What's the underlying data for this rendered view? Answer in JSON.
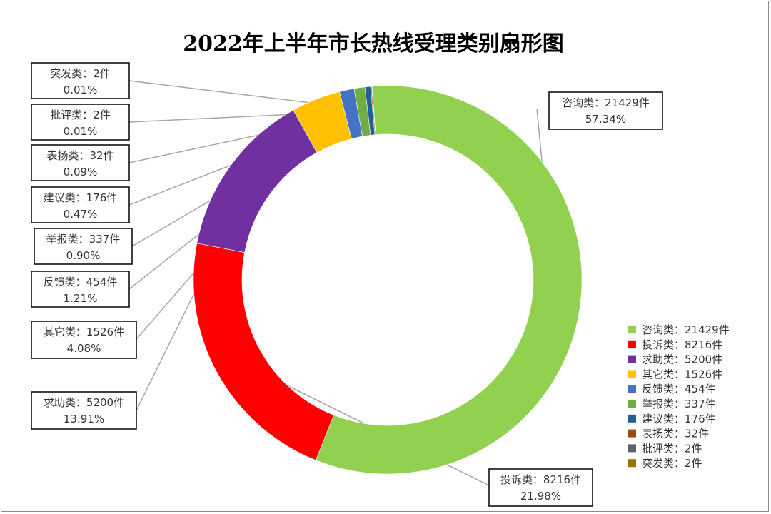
{
  "chart_data": {
    "type": "pie",
    "style": "donut",
    "title": "2022年上半年市长热线受理类别扇形图",
    "legend_position": "right-bottom",
    "slices": [
      {
        "name": "咨询类",
        "value": 21429,
        "unit": "件",
        "percent": "57.34%",
        "color": "#92d050"
      },
      {
        "name": "投诉类",
        "value": 8216,
        "unit": "件",
        "percent": "21.98%",
        "color": "#ff0000"
      },
      {
        "name": "求助类",
        "value": 5200,
        "unit": "件",
        "percent": "13.91%",
        "color": "#7030a0"
      },
      {
        "name": "其它类",
        "value": 1526,
        "unit": "件",
        "percent": "4.08%",
        "color": "#ffc000"
      },
      {
        "name": "反馈类",
        "value": 454,
        "unit": "件",
        "percent": "1.21%",
        "color": "#4472c4"
      },
      {
        "name": "举报类",
        "value": 337,
        "unit": "件",
        "percent": "0.90%",
        "color": "#70ad47"
      },
      {
        "name": "建议类",
        "value": 176,
        "unit": "件",
        "percent": "0.47%",
        "color": "#255e91"
      },
      {
        "name": "表扬类",
        "value": 32,
        "unit": "件",
        "percent": "0.09%",
        "color": "#9e480e"
      },
      {
        "name": "批评类",
        "value": 2,
        "unit": "件",
        "percent": "0.01%",
        "color": "#636363"
      },
      {
        "name": "突发类",
        "value": 2,
        "unit": "件",
        "percent": "0.01%",
        "color": "#997300"
      }
    ],
    "label_separator": "："
  }
}
